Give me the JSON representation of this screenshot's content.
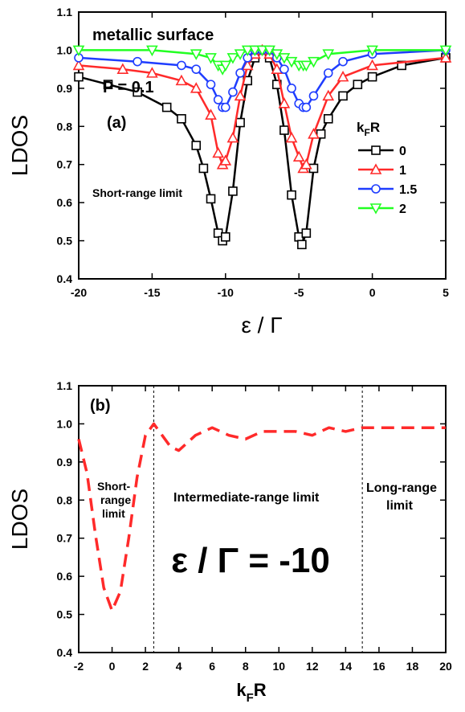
{
  "chart_data": [
    {
      "type": "line",
      "panel_label": "(a)",
      "title": "",
      "annotations": {
        "surface": "metallic surface",
        "polarization": "P = 0.1",
        "regime": "Short-range limit"
      },
      "xlabel": "ε / Γ",
      "ylabel": "LDOS",
      "xlim": [
        -20,
        5
      ],
      "ylim": [
        0.4,
        1.1
      ],
      "xticks": [
        -20,
        -15,
        -10,
        -5,
        0,
        5
      ],
      "yticks": [
        0.4,
        0.5,
        0.6,
        0.7,
        0.8,
        0.9,
        1.0,
        1.1
      ],
      "grid": false,
      "legend_title": "kFR",
      "legend_placement": "right",
      "series": [
        {
          "name": "0",
          "color": "#000000",
          "marker": "square",
          "x": [
            -20,
            -18,
            -16,
            -14,
            -13,
            -12,
            -11.5,
            -11,
            -10.5,
            -10.2,
            -10,
            -9.5,
            -9,
            -8.5,
            -8,
            -7.5,
            -7,
            -6.5,
            -6,
            -5.5,
            -5,
            -4.8,
            -4.5,
            -4,
            -3.5,
            -3,
            -2,
            -1,
            0,
            2,
            5
          ],
          "y": [
            0.93,
            0.91,
            0.89,
            0.85,
            0.82,
            0.75,
            0.69,
            0.61,
            0.52,
            0.5,
            0.51,
            0.63,
            0.81,
            0.92,
            0.98,
            1.0,
            0.98,
            0.91,
            0.79,
            0.62,
            0.51,
            0.49,
            0.52,
            0.69,
            0.78,
            0.82,
            0.88,
            0.91,
            0.93,
            0.96,
            0.98
          ]
        },
        {
          "name": "1",
          "color": "#ff2a2a",
          "marker": "triangle-up",
          "x": [
            -20,
            -17,
            -15,
            -13,
            -12,
            -11,
            -10.5,
            -10.2,
            -10,
            -9.5,
            -9,
            -8.5,
            -8,
            -7.5,
            -7,
            -6.5,
            -6,
            -5.5,
            -5,
            -4.7,
            -4.5,
            -4,
            -3,
            -2,
            0,
            5
          ],
          "y": [
            0.96,
            0.95,
            0.94,
            0.92,
            0.9,
            0.83,
            0.73,
            0.7,
            0.71,
            0.77,
            0.88,
            0.96,
            0.99,
            1.0,
            0.99,
            0.95,
            0.86,
            0.77,
            0.72,
            0.69,
            0.7,
            0.78,
            0.88,
            0.93,
            0.96,
            0.98
          ]
        },
        {
          "name": "1.5",
          "color": "#1f3dff",
          "marker": "circle",
          "x": [
            -20,
            -16,
            -13,
            -12,
            -11,
            -10.5,
            -10.2,
            -10,
            -9.5,
            -9,
            -8.5,
            -8,
            -7.5,
            -7,
            -6.5,
            -6,
            -5.5,
            -5,
            -4.7,
            -4.5,
            -4,
            -3,
            -2,
            0,
            5
          ],
          "y": [
            0.98,
            0.97,
            0.96,
            0.95,
            0.91,
            0.87,
            0.85,
            0.85,
            0.89,
            0.94,
            0.98,
            1.0,
            1.0,
            1.0,
            0.98,
            0.95,
            0.9,
            0.86,
            0.85,
            0.85,
            0.88,
            0.94,
            0.97,
            0.99,
            1.0
          ]
        },
        {
          "name": "2",
          "color": "#22ff22",
          "marker": "triangle-down",
          "x": [
            -20,
            -15,
            -12,
            -11,
            -10.5,
            -10.2,
            -10,
            -9.5,
            -9,
            -8.5,
            -8,
            -7.5,
            -7,
            -6.5,
            -6,
            -5.5,
            -5,
            -4.7,
            -4.5,
            -4,
            -3,
            0,
            5
          ],
          "y": [
            1.0,
            1.0,
            0.99,
            0.98,
            0.96,
            0.95,
            0.96,
            0.98,
            0.99,
            1.0,
            1.0,
            1.0,
            1.0,
            0.99,
            0.98,
            0.97,
            0.96,
            0.96,
            0.96,
            0.97,
            0.99,
            1.0,
            1.0
          ]
        }
      ]
    },
    {
      "type": "line",
      "panel_label": "(b)",
      "title": "",
      "xlabel": "kFR",
      "ylabel": "LDOS",
      "xlim": [
        -2,
        20
      ],
      "ylim": [
        0.4,
        1.1
      ],
      "xticks": [
        -2,
        0,
        2,
        4,
        6,
        8,
        10,
        12,
        14,
        16,
        18,
        20
      ],
      "yticks": [
        0.4,
        0.5,
        0.6,
        0.7,
        0.8,
        0.9,
        1.0,
        1.1
      ],
      "grid": false,
      "vlines": [
        2.5,
        15
      ],
      "regions": {
        "short_line1": "Short-",
        "short_line2": "range",
        "short_line3": "limit",
        "intermediate": "Intermediate-range limit",
        "long_line1": "Long-range",
        "long_line2": "limit"
      },
      "big_label": "ε / Γ = -10",
      "series": [
        {
          "name": "",
          "color": "#ff2a2a",
          "style": "dashed",
          "x": [
            -2,
            -1.5,
            -1,
            -0.5,
            0,
            0.5,
            1,
            1.5,
            2,
            2.5,
            3,
            3.5,
            4,
            5,
            6,
            7,
            8,
            9,
            10,
            11,
            12,
            13,
            14,
            15,
            16,
            18,
            20
          ],
          "y": [
            0.96,
            0.87,
            0.71,
            0.57,
            0.51,
            0.56,
            0.7,
            0.86,
            0.97,
            1.0,
            0.97,
            0.94,
            0.93,
            0.97,
            0.99,
            0.97,
            0.96,
            0.98,
            0.98,
            0.98,
            0.97,
            0.99,
            0.98,
            0.99,
            0.99,
            0.99,
            0.99
          ]
        }
      ]
    }
  ]
}
